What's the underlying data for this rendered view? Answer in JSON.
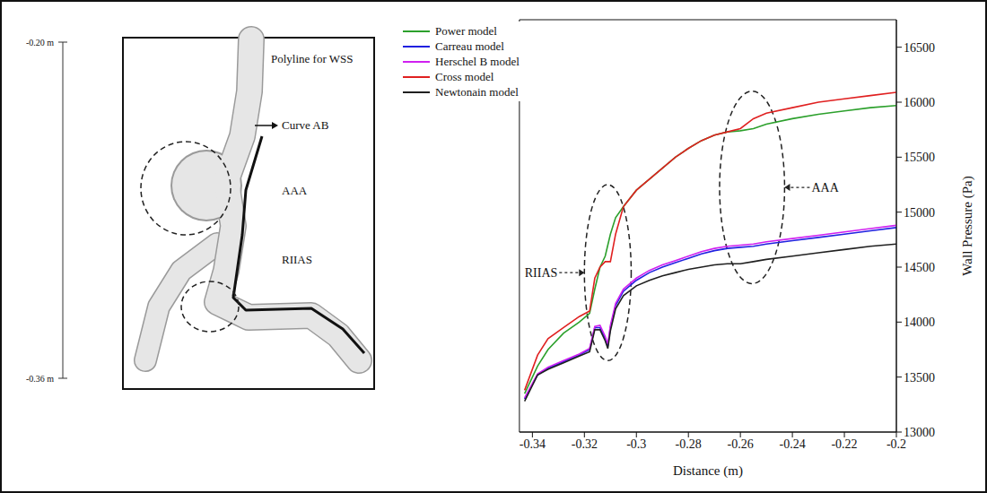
{
  "diagram": {
    "scale_top": "-0.20 m",
    "scale_bottom": "-0.36 m",
    "title": "Polyline for WSS",
    "curve_label": "Curve AB",
    "region_1": "AAA",
    "region_2": "RIIAS"
  },
  "chart_data": {
    "type": "line",
    "x_label": "Distance (m)",
    "y_label": "Wall Pressure (Pa)",
    "xlim": [
      -0.345,
      -0.2
    ],
    "xticks": [
      -0.34,
      -0.32,
      -0.3,
      -0.28,
      -0.26,
      -0.24,
      -0.22,
      -0.2
    ],
    "ylim": [
      13000,
      16750
    ],
    "yticks": [
      13000,
      13500,
      14000,
      14500,
      15000,
      15500,
      16000,
      16500
    ],
    "grid": false,
    "legend": "top-left",
    "x": [
      -0.343,
      -0.338,
      -0.334,
      -0.328,
      -0.322,
      -0.318,
      -0.316,
      -0.314,
      -0.312,
      -0.311,
      -0.31,
      -0.308,
      -0.305,
      -0.3,
      -0.295,
      -0.29,
      -0.285,
      -0.28,
      -0.275,
      -0.27,
      -0.265,
      -0.26,
      -0.255,
      -0.25,
      -0.24,
      -0.23,
      -0.22,
      -0.21,
      -0.2
    ],
    "series": [
      {
        "name": "Power model",
        "color": "#2ca02c",
        "values": [
          13350,
          13600,
          13750,
          13900,
          14000,
          14080,
          14300,
          14500,
          14600,
          14700,
          14800,
          14950,
          15050,
          15200,
          15300,
          15400,
          15500,
          15580,
          15650,
          15700,
          15730,
          15740,
          15760,
          15800,
          15850,
          15890,
          15920,
          15950,
          15970
        ]
      },
      {
        "name": "Carreau model",
        "color": "#2020e0",
        "values": [
          13300,
          13520,
          13580,
          13640,
          13700,
          13750,
          13950,
          13950,
          13850,
          13780,
          13950,
          14150,
          14280,
          14380,
          14450,
          14500,
          14540,
          14580,
          14620,
          14650,
          14670,
          14680,
          14690,
          14710,
          14740,
          14770,
          14800,
          14830,
          14860
        ]
      },
      {
        "name": "Herschel B model",
        "color": "#d020f0",
        "values": [
          13310,
          13530,
          13590,
          13650,
          13710,
          13760,
          13960,
          13970,
          13870,
          13800,
          13970,
          14170,
          14300,
          14400,
          14470,
          14520,
          14560,
          14600,
          14640,
          14670,
          14690,
          14700,
          14710,
          14730,
          14760,
          14790,
          14820,
          14850,
          14880
        ]
      },
      {
        "name": "Cross model",
        "color": "#e02020",
        "values": [
          13380,
          13700,
          13850,
          13950,
          14050,
          14100,
          14400,
          14500,
          14550,
          14550,
          14550,
          14800,
          15050,
          15200,
          15300,
          15400,
          15500,
          15580,
          15650,
          15700,
          15730,
          15760,
          15850,
          15900,
          15950,
          16000,
          16030,
          16060,
          16090
        ]
      },
      {
        "name": "Newtonain model",
        "color": "#202020",
        "values": [
          13280,
          13520,
          13570,
          13630,
          13690,
          13730,
          13930,
          13930,
          13830,
          13760,
          13920,
          14120,
          14240,
          14330,
          14380,
          14420,
          14450,
          14480,
          14500,
          14520,
          14530,
          14530,
          14550,
          14570,
          14600,
          14630,
          14660,
          14690,
          14710
        ]
      }
    ],
    "annotations": [
      {
        "text": "RIIAS",
        "x": [
          -0.32,
          -0.302
        ],
        "y": [
          13650,
          15250
        ]
      },
      {
        "text": "AAA",
        "x": [
          -0.268,
          -0.243
        ],
        "y": [
          14350,
          16100
        ]
      }
    ]
  }
}
